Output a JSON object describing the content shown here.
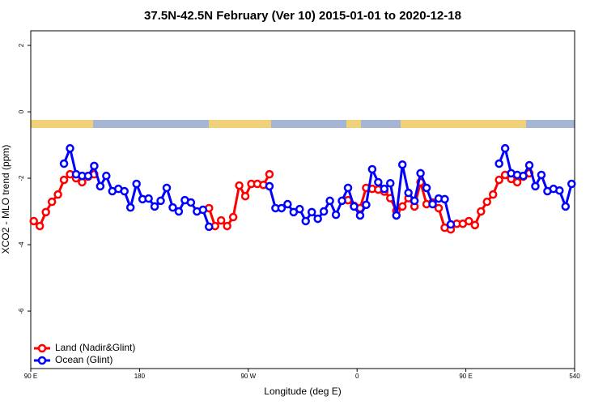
{
  "chart_data": {
    "type": "line",
    "title": "37.5N-42.5N February (Ver 10)   2015-01-01 to 2020-12-18",
    "x_label": "Longitude (deg E)",
    "y_label": "XCO2 - MLO trend (ppm)",
    "x": [
      92.5,
      97.5,
      102.5,
      107.5,
      112.5,
      117.5,
      122.5,
      127.5,
      132.5,
      137.5,
      142.5,
      147.5,
      152.5,
      157.5,
      162.5,
      167.5,
      172.5,
      177.5,
      182.5,
      187.5,
      192.5,
      197.5,
      202.5,
      207.5,
      212.5,
      217.5,
      222.5,
      227.5,
      232.5,
      237.5,
      242.5,
      247.5,
      252.5,
      257.5,
      262.5,
      267.5,
      272.5,
      277.5,
      282.5,
      287.5,
      292.5,
      297.5,
      302.5,
      307.5,
      312.5,
      317.5,
      322.5,
      327.5,
      332.5,
      337.5,
      342.5,
      347.5,
      352.5,
      357.5,
      362.5,
      367.5,
      372.5,
      377.5,
      382.5,
      387.5,
      392.5,
      397.5,
      402.5,
      407.5,
      412.5,
      417.5,
      422.5,
      427.5,
      432.5,
      437.5,
      442.5,
      447.5,
      452.5,
      457.5,
      462.5,
      467.5,
      472.5,
      477.5,
      482.5,
      487.5,
      492.5,
      497.5,
      502.5,
      507.5,
      512.5,
      517.5,
      522.5,
      527.5,
      532.5,
      537.5
    ],
    "series": [
      {
        "name": "Land (Nadir&Glint)",
        "color": "#ff0000",
        "values": [
          -3.29,
          -3.44,
          -3.02,
          -2.71,
          -2.49,
          -2.05,
          -1.88,
          -2.0,
          -2.12,
          -1.95,
          -1.88,
          null,
          null,
          null,
          null,
          null,
          null,
          null,
          null,
          null,
          null,
          null,
          null,
          null,
          null,
          null,
          null,
          null,
          null,
          -2.9,
          -3.44,
          -3.27,
          -3.44,
          -3.17,
          -2.22,
          -2.54,
          -2.17,
          -2.17,
          -2.2,
          -1.88,
          null,
          null,
          null,
          null,
          null,
          null,
          null,
          null,
          null,
          null,
          null,
          null,
          -2.66,
          -2.83,
          -2.9,
          -2.29,
          -2.32,
          -2.34,
          -2.4,
          -2.6,
          -2.98,
          -2.85,
          -2.6,
          -2.85,
          -2.12,
          -2.78,
          -2.73,
          -2.9,
          -3.49,
          -3.54,
          -3.37,
          -3.37,
          -3.29,
          -3.41,
          -3.0,
          -2.71,
          -2.49,
          -2.05,
          -1.9,
          -2.02,
          -2.12,
          -1.95,
          -1.85,
          null,
          null,
          null,
          null,
          null,
          null,
          null
        ]
      },
      {
        "name": "Ocean (Glint)",
        "color": "#0000ff",
        "values": [
          null,
          null,
          null,
          null,
          null,
          -1.56,
          -1.1,
          -1.88,
          -1.93,
          -1.93,
          -1.63,
          -2.24,
          -1.93,
          -2.39,
          -2.32,
          -2.39,
          -2.88,
          -2.17,
          -2.63,
          -2.61,
          -2.85,
          -2.68,
          -2.29,
          -2.88,
          -3.0,
          -2.66,
          -2.73,
          -3.0,
          -2.95,
          -3.46,
          null,
          null,
          null,
          null,
          null,
          null,
          null,
          null,
          null,
          -2.24,
          -2.9,
          -2.9,
          -2.78,
          -3.02,
          -2.93,
          -3.29,
          -3.02,
          -3.22,
          -3.0,
          -2.68,
          -3.1,
          -2.68,
          -2.29,
          -2.85,
          -3.12,
          -2.8,
          -1.73,
          -2.12,
          -2.32,
          -2.15,
          -3.12,
          -1.59,
          -2.44,
          -2.68,
          -1.85,
          -2.29,
          -2.78,
          -2.61,
          -2.63,
          -3.39,
          null,
          null,
          null,
          null,
          null,
          null,
          null,
          -1.56,
          -1.1,
          -1.85,
          -1.9,
          -1.93,
          -1.61,
          -2.24,
          -1.9,
          -2.39,
          -2.32,
          -2.37,
          -2.85,
          -2.17
        ]
      }
    ],
    "xlim": [
      90,
      540
    ],
    "xticks": [
      {
        "value": 90,
        "label": "90 E"
      },
      180,
      {
        "value": 270,
        "label": "90 W"
      },
      {
        "value": 360,
        "label": "0"
      },
      {
        "value": 450,
        "label": "90 E"
      },
      540
    ],
    "ylim": [
      -7.73,
      2.44
    ],
    "yticks": [
      2,
      0,
      -2,
      -4,
      -6
    ],
    "legend": "bottomleft"
  }
}
